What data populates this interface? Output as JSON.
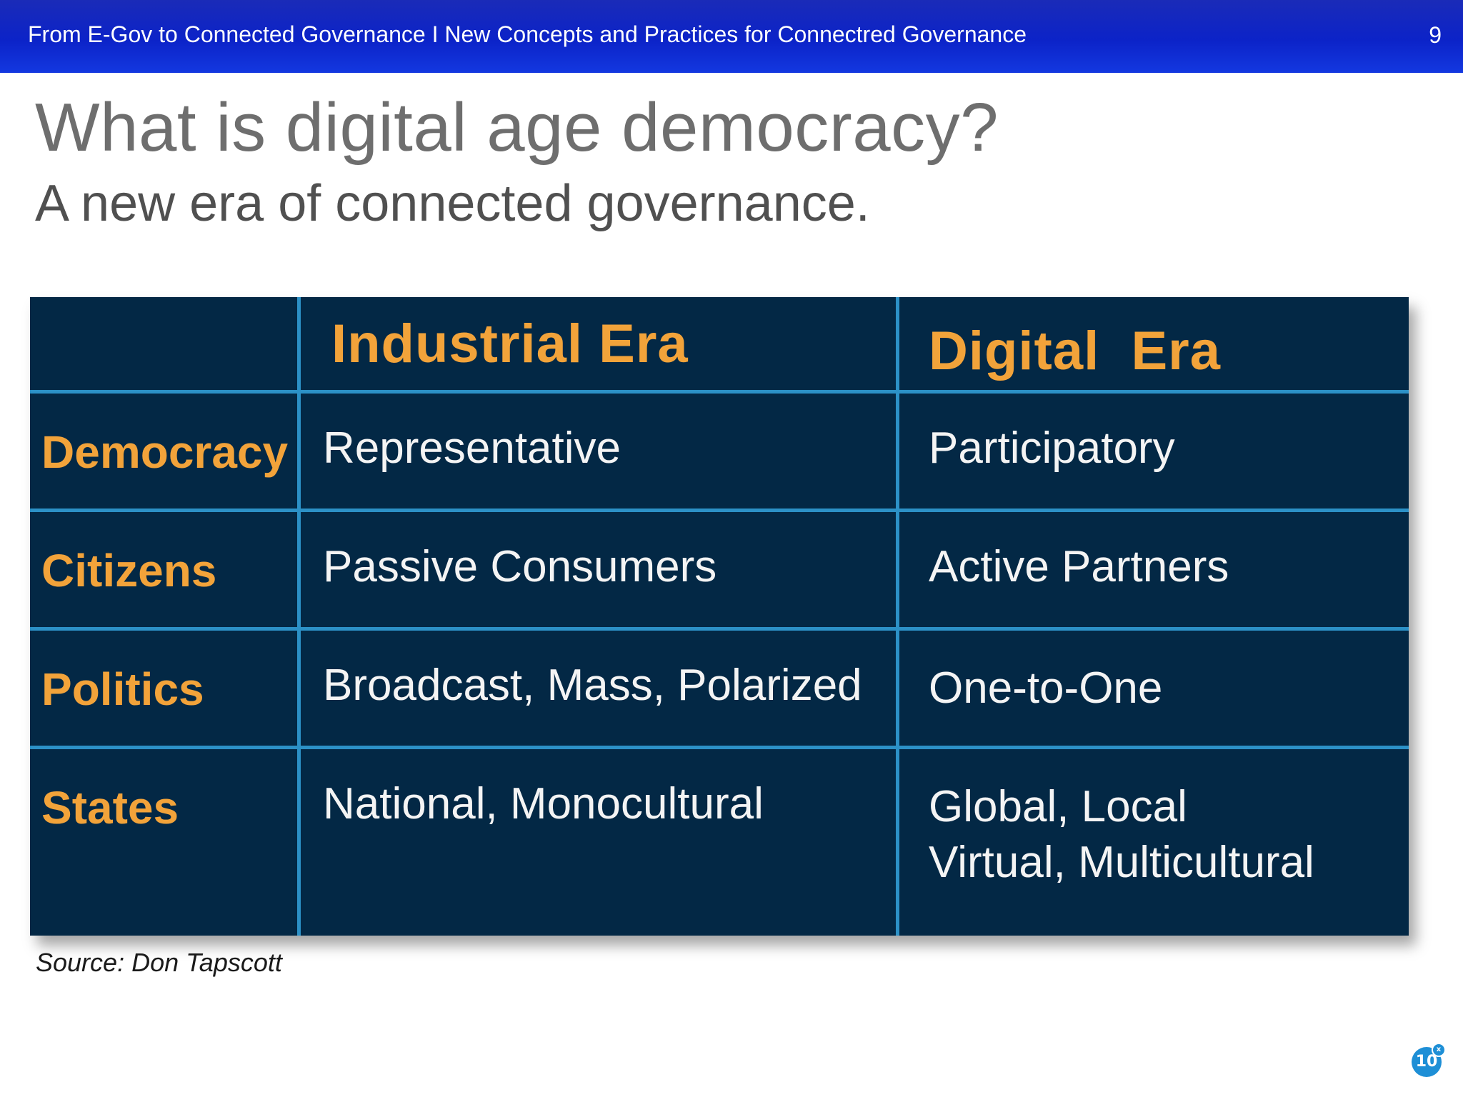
{
  "header": {
    "title": "From E-Gov to Connected Governance I New Concepts and Practices for Connectred Governance",
    "page_number": "9"
  },
  "slide": {
    "title": "What is digital age democracy?",
    "subtitle": "A new era of connected governance."
  },
  "table": {
    "columns": [
      "Industrial Era",
      "Digital  Era"
    ],
    "rows": [
      {
        "label": "Democracy",
        "industrial": [
          "Representative"
        ],
        "digital": [
          "Participatory"
        ]
      },
      {
        "label": "Citizens",
        "industrial": [
          "Passive Consumers"
        ],
        "digital": [
          "Active Partners"
        ]
      },
      {
        "label": "Politics",
        "industrial": [
          "Broadcast, Mass, Polarized"
        ],
        "digital": [
          "One-to-One"
        ]
      },
      {
        "label": "States",
        "industrial": [
          "National, Monocultural"
        ],
        "digital": [
          "Global, Local",
          "Virtual, Multicultural"
        ]
      }
    ]
  },
  "source": "Source: Don Tapscott",
  "badge": {
    "label": "10",
    "close_glyph": "x"
  },
  "colors": {
    "header_bar": "#0c23c8",
    "table_background": "#032845",
    "grid_lines": "#2c91c7",
    "accent_orange": "#f2a33a",
    "title_gray": "#6e6e6e"
  }
}
